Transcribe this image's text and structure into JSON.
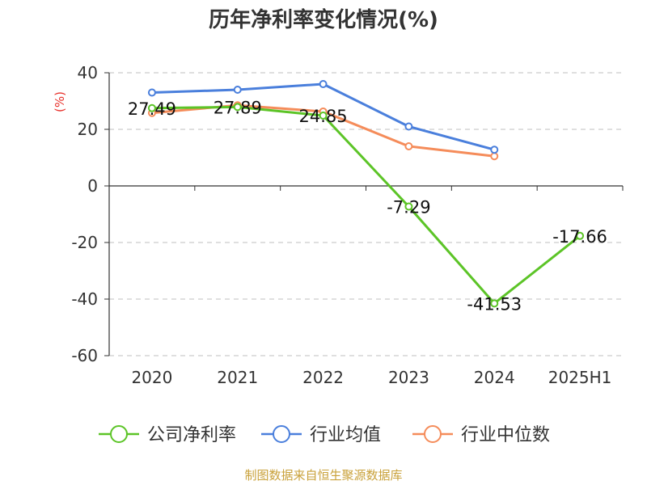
{
  "chart_data": {
    "type": "line",
    "title": "历年净利率变化情况(%)",
    "ylabel": "(%)",
    "xlabel": "",
    "categories": [
      "2020",
      "2021",
      "2022",
      "2023",
      "2024",
      "2025H1"
    ],
    "ylim": [
      -60,
      40
    ],
    "yticks": [
      40,
      20,
      0,
      -20,
      -40,
      -60
    ],
    "grid": true,
    "legend_position": "bottom",
    "series": [
      {
        "name": "公司净利率",
        "color": "#5cc427",
        "values": [
          27.49,
          27.89,
          24.85,
          -7.29,
          -41.53,
          -17.66
        ],
        "labels": [
          "27.49",
          "27.89",
          "24.85",
          "-7.29",
          "-41.53",
          "-17.66"
        ]
      },
      {
        "name": "行业均值",
        "color": "#4a7fdc",
        "values": [
          33.0,
          34.0,
          36.0,
          21.0,
          12.8,
          null
        ]
      },
      {
        "name": "行业中位数",
        "color": "#f58c5a",
        "values": [
          25.8,
          28.5,
          26.3,
          14.0,
          10.5,
          null
        ]
      }
    ]
  },
  "source_note": "制图数据来自恒生聚源数据库"
}
